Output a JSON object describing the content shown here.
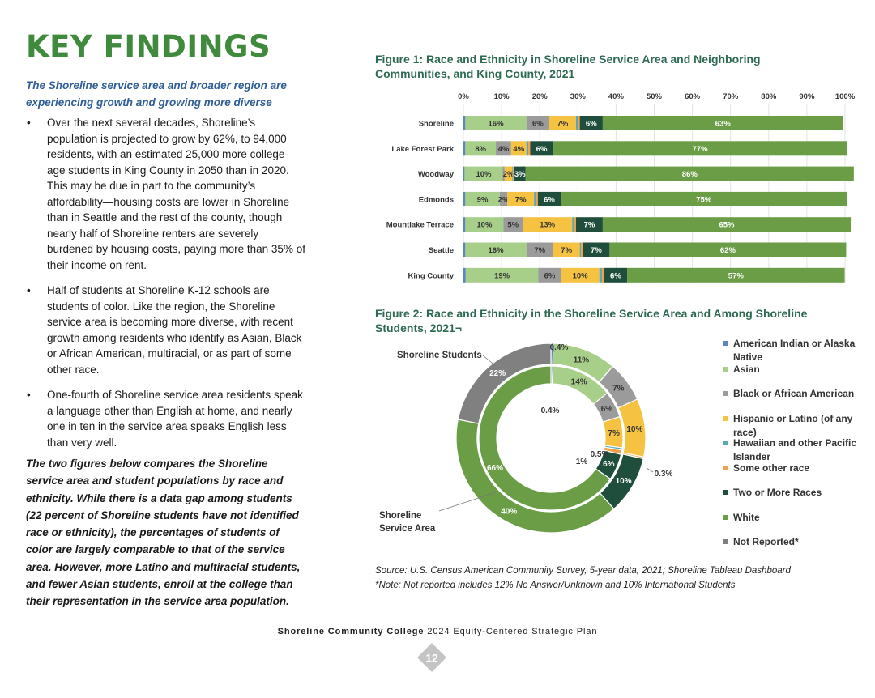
{
  "page": {
    "title": "KEY FINDINGS",
    "subtitle": "The Shoreline service area and broader region are experiencing growth and growing more diverse",
    "bullet_marker": "•",
    "bullets": [
      "Over the next several decades, Shoreline’s population is projected to grow by 62%, to 94,000 residents, with an estimated 25,000 more college-age students in King County in 2050 than in 2020. This may be due in part to the community’s affordability—housing costs are lower in Shoreline than in Seattle and the rest of the county, though nearly half of Shoreline renters are severely burdened by housing costs, paying more than 35% of their income on rent.",
      "Half of students at Shoreline K-12 schools are students of color. Like the region, the Shoreline service area is becoming more diverse, with recent growth among residents who identify as Asian, Black or African American, multiracial, or as part of some other race.",
      "One-fourth of Shoreline service area residents speak a language other than English at home, and nearly one in ten in the service area speaks English less than very well."
    ],
    "closing": "The two figures below compares the Shoreline service area and student populations by race and ethnicity. While there is a data gap among students (22 percent of Shoreline students have not identified race or ethnicity), the percentages of students of color are largely comparable to that of the service area. However, more Latino and multiracial students, and fewer Asian students, enroll at the college than their representation in the service area population.",
    "figure1_title": "Figure 1: Race and Ethnicity in Shoreline Service Area and Neighboring Communities, and King County, 2021",
    "figure2_title": "Figure 2: Race and Ethnicity in the Shoreline Service Area and Among Shoreline Students, 2021¬",
    "source_line1": "Source: U.S. Census American Community Survey, 5-year data, 2021; Shoreline Tableau Dashboard",
    "source_line2": "*Note: Not reported includes 12% No Answer/Unknown and 10% International Students",
    "footer_org": "Shoreline Community College",
    "footer_doc": " 2024 Equity-Centered Strategic Plan",
    "page_number": "12"
  },
  "colors": {
    "title": "#3f8a3c",
    "subtitle": "#2f5f96",
    "figure_title": "#2d6a52",
    "american_indian": "#5b86c0",
    "asian": "#a8cf8a",
    "black": "#9b9b9b",
    "hispanic": "#f5c242",
    "hawaiian": "#5aa7b5",
    "other": "#f0a14d",
    "two_or_more": "#1f4e3d",
    "white": "#6a9d45",
    "not_reported": "#808080",
    "page_badge": "#c4c4c4"
  },
  "legend": [
    {
      "label": "American Indian or Alaska Native",
      "color": "#5b86c0",
      "icon": "square-bullet-icon"
    },
    {
      "label": "Asian",
      "color": "#a8cf8a",
      "icon": "square-bullet-icon"
    },
    {
      "label": "Black or African American",
      "color": "#9b9b9b",
      "icon": "square-bullet-icon"
    },
    {
      "label": "Hispanic or Latino (of any race)",
      "color": "#f5c242",
      "icon": "square-bullet-icon"
    },
    {
      "label": "Hawaiian and other Pacific Islander",
      "color": "#5aa7b5",
      "icon": "square-bullet-icon"
    },
    {
      "label": "Some other race",
      "color": "#f0a14d",
      "icon": "square-bullet-icon"
    },
    {
      "label": "Two or More Races",
      "color": "#1f4e3d",
      "icon": "square-bullet-icon"
    },
    {
      "label": "White",
      "color": "#6a9d45",
      "icon": "square-bullet-icon"
    },
    {
      "label": "Not Reported*",
      "color": "#808080",
      "icon": "square-bullet-icon"
    }
  ],
  "chart_data": [
    {
      "type": "bar",
      "stacked": "100%",
      "orientation": "horizontal",
      "xlim": [
        0,
        100
      ],
      "ticks": [
        "0%",
        "10%",
        "20%",
        "30%",
        "40%",
        "50%",
        "60%",
        "70%",
        "80%",
        "90%",
        "100%"
      ],
      "grid": true,
      "categories": [
        "Shoreline",
        "Lake Forest Park",
        "Woodway",
        "Edmonds",
        "Mountlake Terrace",
        "Seattle",
        "King County"
      ],
      "series": [
        {
          "key": "american_indian",
          "color": "#5b86c0",
          "values": [
            0.5,
            0.5,
            0.3,
            0.5,
            0.5,
            0.5,
            0.6
          ]
        },
        {
          "key": "asian",
          "color": "#a8cf8a",
          "values": [
            16,
            8,
            10,
            9,
            10,
            16,
            19
          ]
        },
        {
          "key": "black",
          "color": "#9b9b9b",
          "values": [
            6,
            4,
            0.5,
            2,
            5,
            7,
            6
          ]
        },
        {
          "key": "hispanic",
          "color": "#f5c242",
          "values": [
            7,
            4,
            2,
            7,
            13,
            7,
            10
          ]
        },
        {
          "key": "hawaiian",
          "color": "#5aa7b5",
          "values": [
            0.5,
            0.5,
            0.2,
            0.5,
            0.5,
            0.3,
            0.7
          ]
        },
        {
          "key": "other",
          "color": "#f0a14d",
          "values": [
            0.5,
            0.5,
            0.3,
            0.5,
            0.5,
            0.5,
            0.6
          ]
        },
        {
          "key": "two_or_more",
          "color": "#1f4e3d",
          "values": [
            6,
            6,
            3,
            6,
            7,
            7,
            6
          ]
        },
        {
          "key": "white",
          "color": "#6a9d45",
          "values": [
            63,
            77,
            86,
            75,
            65,
            62,
            57
          ]
        }
      ],
      "data_labels": [
        [
          "",
          "16%",
          "6%",
          "7%",
          "",
          "",
          "6%",
          "63%"
        ],
        [
          "",
          "8%",
          "4%",
          "4%",
          "",
          "",
          "6%",
          "77%"
        ],
        [
          "",
          "10%",
          "",
          "2%",
          "",
          "",
          "3%",
          "86%"
        ],
        [
          "",
          "9%",
          "2%",
          "7%",
          "",
          "",
          "6%",
          "75%"
        ],
        [
          "",
          "10%",
          "5%",
          "13%",
          "",
          "",
          "7%",
          "65%"
        ],
        [
          "",
          "16%",
          "7%",
          "7%",
          "",
          "",
          "7%",
          "62%"
        ],
        [
          "",
          "19%",
          "6%",
          "10%",
          "",
          "",
          "6%",
          "57%"
        ]
      ]
    },
    {
      "type": "pie",
      "variant": "double-donut",
      "rings": [
        {
          "name": "Shoreline Students",
          "position": "outer",
          "slices": [
            {
              "key": "american_indian",
              "value": 0.4,
              "label": "0.4%"
            },
            {
              "key": "asian",
              "value": 11,
              "label": "11%"
            },
            {
              "key": "black",
              "value": 7,
              "label": "7%"
            },
            {
              "key": "hispanic",
              "value": 10,
              "label": "10%"
            },
            {
              "key": "other",
              "value": 0.3,
              "label": "0.3%"
            },
            {
              "key": "two_or_more",
              "value": 10,
              "label": "10%"
            },
            {
              "key": "white",
              "value": 40,
              "label": "40%"
            },
            {
              "key": "not_reported",
              "value": 22,
              "label": "22%"
            }
          ]
        },
        {
          "name": "Shoreline Service Area",
          "position": "inner",
          "slices": [
            {
              "key": "american_indian",
              "value": 0.4,
              "label": "0.4%"
            },
            {
              "key": "asian",
              "value": 14,
              "label": "14%"
            },
            {
              "key": "black",
              "value": 6,
              "label": "6%"
            },
            {
              "key": "hispanic",
              "value": 7,
              "label": "7%"
            },
            {
              "key": "hawaiian",
              "value": 0.5,
              "label": "0.5%"
            },
            {
              "key": "other",
              "value": 1,
              "label": "1%"
            },
            {
              "key": "two_or_more",
              "value": 6,
              "label": "6%"
            },
            {
              "key": "white",
              "value": 66,
              "label": "66%"
            }
          ]
        }
      ]
    }
  ]
}
